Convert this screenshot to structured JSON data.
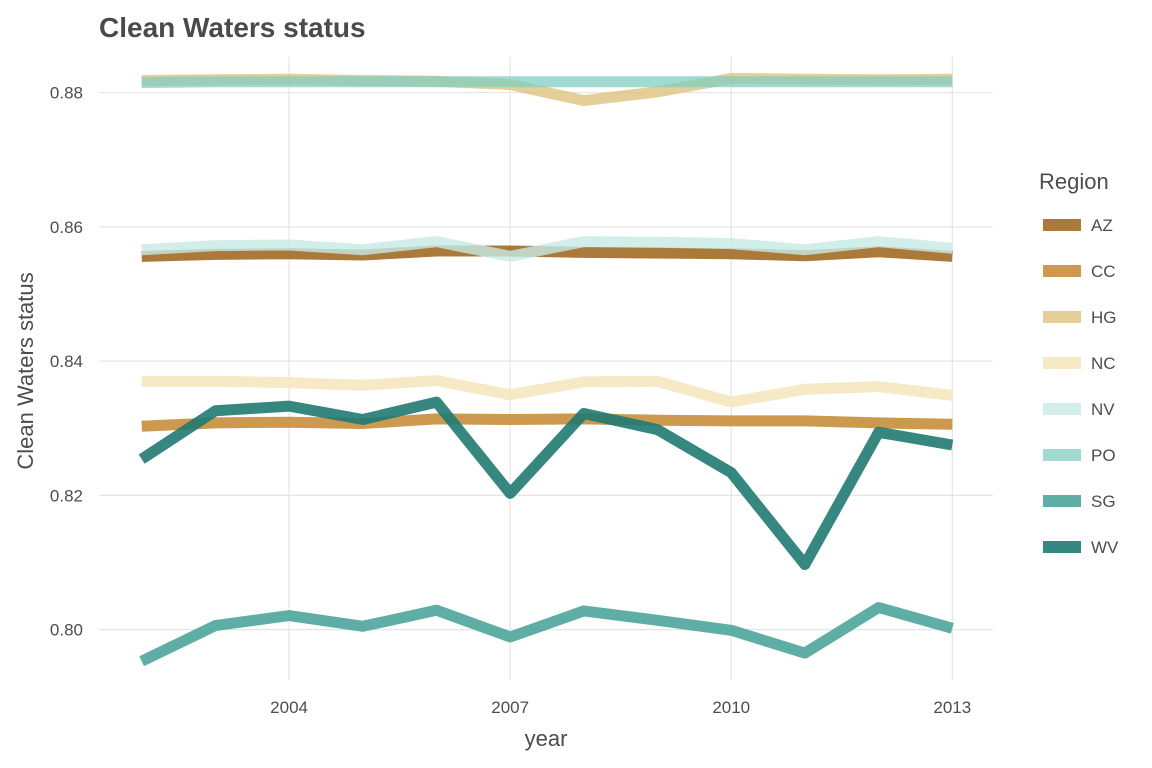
{
  "chart_data": {
    "type": "line",
    "title": "Clean Waters status",
    "xlabel": "year",
    "ylabel": "Clean Waters status",
    "x": [
      2002,
      2003,
      2004,
      2005,
      2006,
      2007,
      2008,
      2009,
      2010,
      2011,
      2012,
      2013
    ],
    "xticks": [
      2004,
      2007,
      2010,
      2013
    ],
    "xtick_labels": [
      "2004",
      "2007",
      "2010",
      "2013"
    ],
    "yticks": [
      0.8,
      0.82,
      0.84,
      0.86,
      0.88
    ],
    "ytick_labels": [
      "0.80",
      "0.82",
      "0.84",
      "0.86",
      "0.88"
    ],
    "xlim": [
      2001.95,
      2013.05
    ],
    "ylim": [
      0.7925,
      0.8853
    ],
    "grid": true,
    "legend": {
      "title": "Region",
      "position": "right"
    },
    "series": [
      {
        "name": "AZ",
        "color": "#a6722f",
        "opacity": 0.95,
        "values": [
          0.8556,
          0.8559,
          0.856,
          0.8558,
          0.8564,
          0.8564,
          0.8562,
          0.8561,
          0.856,
          0.8557,
          0.8563,
          0.8556
        ]
      },
      {
        "name": "CC",
        "color": "#c99346",
        "opacity": 0.95,
        "values": [
          0.8303,
          0.8308,
          0.8309,
          0.8307,
          0.8314,
          0.8313,
          0.8314,
          0.8312,
          0.8311,
          0.8311,
          0.8308,
          0.8306
        ]
      },
      {
        "name": "HG",
        "color": "#dfc27d",
        "opacity": 0.8,
        "values": [
          0.8818,
          0.8819,
          0.882,
          0.8818,
          0.8817,
          0.8812,
          0.8788,
          0.8801,
          0.8821,
          0.882,
          0.8819,
          0.882
        ]
      },
      {
        "name": "NC",
        "color": "#f6e8c3",
        "opacity": 0.95,
        "values": [
          0.837,
          0.837,
          0.8368,
          0.8364,
          0.8371,
          0.835,
          0.8369,
          0.837,
          0.8339,
          0.8358,
          0.8362,
          0.8349
        ]
      },
      {
        "name": "NV",
        "color": "#c7eae5",
        "opacity": 0.8,
        "values": [
          0.8566,
          0.8572,
          0.8573,
          0.8566,
          0.8578,
          0.8556,
          0.8578,
          0.8577,
          0.8575,
          0.8566,
          0.8578,
          0.8568
        ]
      },
      {
        "name": "PO",
        "color": "#80cdc1",
        "opacity": 0.75,
        "values": [
          0.8815,
          0.8816,
          0.8816,
          0.8816,
          0.8816,
          0.8816,
          0.8816,
          0.8816,
          0.8816,
          0.8816,
          0.8816,
          0.8816
        ]
      },
      {
        "name": "SG",
        "color": "#4da59b",
        "opacity": 0.9,
        "values": [
          0.7953,
          0.8006,
          0.8021,
          0.8005,
          0.8029,
          0.7989,
          0.8028,
          0.8014,
          0.7999,
          0.7965,
          0.8033,
          0.8002
        ]
      },
      {
        "name": "WV",
        "color": "#1f7a72",
        "opacity": 0.9,
        "values": [
          0.8254,
          0.8326,
          0.8333,
          0.8313,
          0.8339,
          0.8203,
          0.8322,
          0.8298,
          0.8234,
          0.8097,
          0.8294,
          0.8275
        ]
      }
    ]
  }
}
